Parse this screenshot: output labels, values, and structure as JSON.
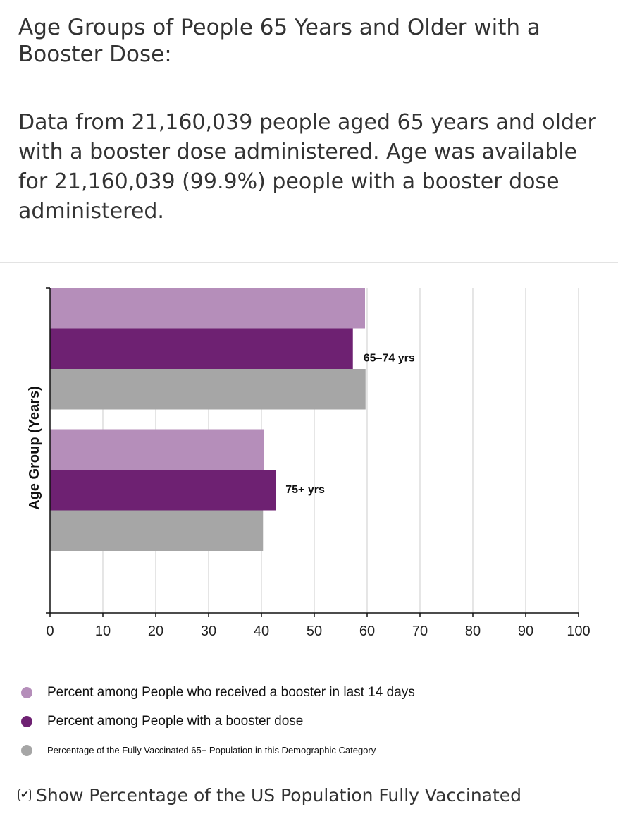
{
  "page": {
    "heading": "Age Groups of People 65 Years and Older with a Booster Dose:",
    "description": "Data from 21,160,039 people aged 65 years and older with a booster dose administered. Age was available for 21,160,039 (99.9%) people with a booster dose administered."
  },
  "chart_data": {
    "type": "bar",
    "orientation": "horizontal",
    "title": "",
    "xlabel": "",
    "ylabel": "Age Group (Years)",
    "xlim": [
      0,
      100
    ],
    "xticks": [
      0,
      10,
      20,
      30,
      40,
      50,
      60,
      70,
      80,
      90,
      100
    ],
    "grid": true,
    "categories": [
      "65–74 yrs",
      "75+ yrs"
    ],
    "series": [
      {
        "name": "Percent among People who received a booster in last 14 days",
        "color": "#b58eba",
        "values": [
          59.6,
          40.4
        ]
      },
      {
        "name": "Percent among People with a booster dose",
        "color": "#6e2172",
        "values": [
          57.3,
          42.7
        ]
      },
      {
        "name": "Percentage of the Fully Vaccinated 65+ Population in this Demographic Category",
        "color": "#a6a6a6",
        "values": [
          59.7,
          40.3
        ]
      }
    ]
  },
  "controls": {
    "show_us_population_checked": true,
    "show_us_population_label": "Show Percentage of the US Population Fully Vaccinated",
    "check_glyph": "✔"
  }
}
